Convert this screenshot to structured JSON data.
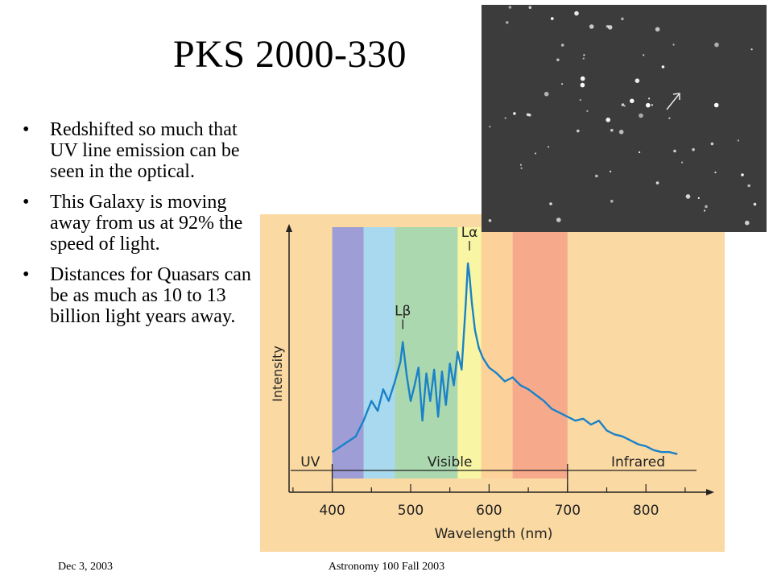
{
  "slide": {
    "title": "PKS 2000-330",
    "bullets": [
      "Redshifted so much that UV line emission can be seen in the optical.",
      "This Galaxy is moving away from us at 92% the speed of light.",
      "Distances for Quasars can be as much as 10 to 13 billion light years away."
    ],
    "footer_left": "Dec 3, 2003",
    "footer_center": "Astronomy 100 Fall 2003"
  },
  "colors": {
    "chart_background": "#fbd9a2",
    "spectrum_line": "#1a82c8",
    "axis": "#222222",
    "band_violet": "#9f9dd6",
    "band_blue": "#a9d9ee",
    "band_green": "#acd8b0",
    "band_yellow": "#f8f6a4",
    "band_orange": "#fcd29a",
    "band_red": "#f7a98c",
    "photo_background": "#3c3c3c"
  },
  "image": {
    "name": "sky photograph of quasar field with arrow",
    "arrow_icon": "arrow-up-right-icon"
  },
  "chart_data": {
    "type": "line",
    "xlabel": "Wavelength (nm)",
    "ylabel": "Intensity",
    "xlim": [
      345,
      885
    ],
    "x_ticks": [
      400,
      500,
      600,
      700,
      800
    ],
    "grid": false,
    "legend": "none",
    "regions": [
      {
        "label": "UV",
        "from": 350,
        "to": 400
      },
      {
        "label": "Visible",
        "from": 400,
        "to": 700
      },
      {
        "label": "Infrared",
        "from": 700,
        "to": 880
      }
    ],
    "bands": [
      {
        "from": 400,
        "to": 440,
        "color": "#9f9dd6"
      },
      {
        "from": 440,
        "to": 480,
        "color": "#a9d9ee"
      },
      {
        "from": 480,
        "to": 560,
        "color": "#acd8b0"
      },
      {
        "from": 560,
        "to": 590,
        "color": "#f8f6a4"
      },
      {
        "from": 590,
        "to": 630,
        "color": "#fcd29a"
      },
      {
        "from": 630,
        "to": 700,
        "color": "#f7a98c"
      }
    ],
    "line_annotations": [
      {
        "label": "Lα",
        "x": 575
      },
      {
        "label": "Lβ",
        "x": 490
      }
    ],
    "series": [
      {
        "x": [
          400,
          415,
          430,
          440,
          450,
          458,
          465,
          472,
          480,
          487,
          490,
          495,
          500,
          505,
          510,
          515,
          520,
          525,
          530,
          535,
          540,
          545,
          550,
          555,
          560,
          565,
          570,
          573,
          575,
          578,
          582,
          587,
          592,
          600,
          610,
          620,
          630,
          640,
          650,
          660,
          670,
          680,
          690,
          700,
          710,
          720,
          730,
          740,
          750,
          760,
          770,
          780,
          790,
          800,
          810,
          820,
          830,
          840
        ],
        "y": [
          0.04,
          0.08,
          0.12,
          0.2,
          0.3,
          0.25,
          0.36,
          0.3,
          0.4,
          0.5,
          0.6,
          0.43,
          0.3,
          0.38,
          0.47,
          0.2,
          0.44,
          0.3,
          0.46,
          0.22,
          0.45,
          0.28,
          0.49,
          0.38,
          0.55,
          0.46,
          0.78,
          1.0,
          0.94,
          0.8,
          0.66,
          0.57,
          0.52,
          0.47,
          0.44,
          0.4,
          0.42,
          0.38,
          0.36,
          0.33,
          0.3,
          0.26,
          0.24,
          0.22,
          0.2,
          0.21,
          0.18,
          0.2,
          0.15,
          0.13,
          0.12,
          0.1,
          0.08,
          0.07,
          0.05,
          0.04,
          0.04,
          0.03
        ]
      }
    ]
  }
}
